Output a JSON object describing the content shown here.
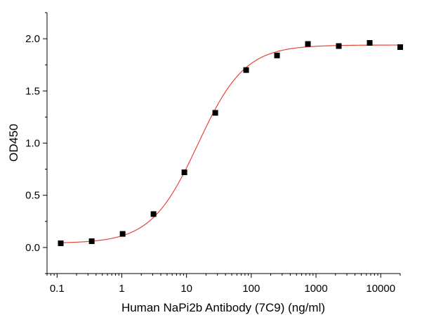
{
  "chart_data": {
    "type": "scatter",
    "title": "",
    "xlabel": "Human NaPi2b  Antibody (7C9) (ng/ml)",
    "ylabel": "OD450",
    "xscale": "log",
    "xlim": [
      0.07,
      20000
    ],
    "ylim": [
      -0.25,
      2.25
    ],
    "grid": false,
    "legend": "none",
    "x_ticks": [
      0.1,
      1,
      10,
      100,
      1000,
      10000
    ],
    "x_tick_labels": [
      "0.1",
      "1",
      "10",
      "100",
      "1000",
      "10000"
    ],
    "y_ticks": [
      0.0,
      0.5,
      1.0,
      1.5,
      2.0
    ],
    "y_tick_labels": [
      "0.0",
      "0.5",
      "1.0",
      "1.5",
      "2.0"
    ],
    "series": [
      {
        "marker": "square",
        "color": "#000000",
        "x": [
          0.114,
          0.343,
          1.03,
          3.09,
          9.26,
          27.8,
          83.3,
          250,
          750,
          2250,
          6750,
          20000
        ],
        "y": [
          0.04,
          0.06,
          0.13,
          0.32,
          0.72,
          1.29,
          1.7,
          1.84,
          1.95,
          1.93,
          1.96,
          1.92
        ]
      }
    ],
    "fit": {
      "model": "4PL",
      "color": "#e8453c",
      "bottom": 0.04,
      "top": 1.94,
      "ec50": 15,
      "hill": 1.2
    }
  }
}
